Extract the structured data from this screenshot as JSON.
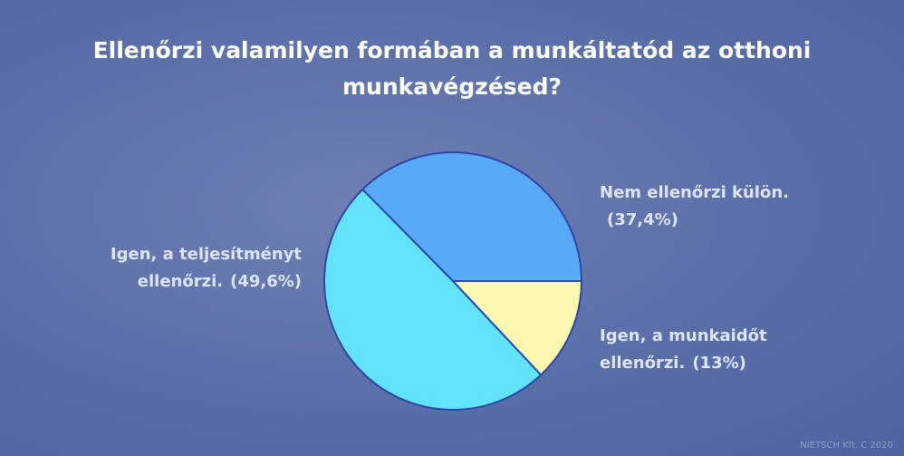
{
  "chart_data": {
    "type": "pie",
    "title": "Ellenőrzi valamilyen formában a munkáltatód az otthoni munkavégzésed?",
    "categories": [
      "Nem ellenőrzi külön.",
      "Igen, a teljesítményt ellenőrzi.",
      "Igen, a munkaidőt ellenőrzi."
    ],
    "values": [
      37.4,
      49.6,
      13
    ],
    "value_labels": [
      "(37,4%)",
      "(49,6%)",
      "(13%)"
    ],
    "colors": [
      "#5aa9f6",
      "#62e3fb",
      "#fdf9b3"
    ],
    "source": "NIETSCH Kft. C 2020"
  }
}
